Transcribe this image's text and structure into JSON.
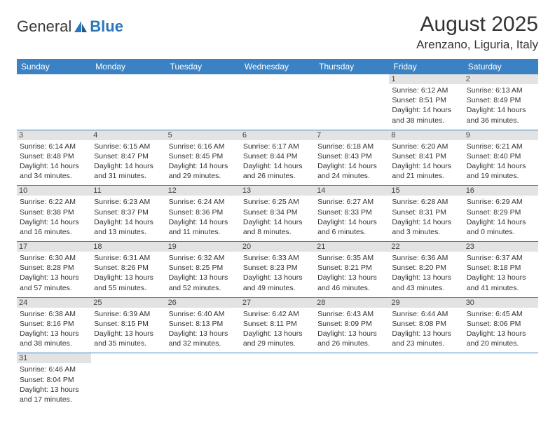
{
  "logo": {
    "part1": "General",
    "part2": "Blue"
  },
  "title": "August 2025",
  "location": "Arenzano, Liguria, Italy",
  "dayHeaders": [
    "Sunday",
    "Monday",
    "Tuesday",
    "Wednesday",
    "Thursday",
    "Friday",
    "Saturday"
  ],
  "colors": {
    "headerBg": "#3a82c4",
    "dayNumBg": "#e3e3e3",
    "text": "#333333"
  },
  "weeks": [
    [
      null,
      null,
      null,
      null,
      null,
      {
        "n": "1",
        "sr": "Sunrise: 6:12 AM",
        "ss": "Sunset: 8:51 PM",
        "dl": "Daylight: 14 hours and 38 minutes."
      },
      {
        "n": "2",
        "sr": "Sunrise: 6:13 AM",
        "ss": "Sunset: 8:49 PM",
        "dl": "Daylight: 14 hours and 36 minutes."
      }
    ],
    [
      {
        "n": "3",
        "sr": "Sunrise: 6:14 AM",
        "ss": "Sunset: 8:48 PM",
        "dl": "Daylight: 14 hours and 34 minutes."
      },
      {
        "n": "4",
        "sr": "Sunrise: 6:15 AM",
        "ss": "Sunset: 8:47 PM",
        "dl": "Daylight: 14 hours and 31 minutes."
      },
      {
        "n": "5",
        "sr": "Sunrise: 6:16 AM",
        "ss": "Sunset: 8:45 PM",
        "dl": "Daylight: 14 hours and 29 minutes."
      },
      {
        "n": "6",
        "sr": "Sunrise: 6:17 AM",
        "ss": "Sunset: 8:44 PM",
        "dl": "Daylight: 14 hours and 26 minutes."
      },
      {
        "n": "7",
        "sr": "Sunrise: 6:18 AM",
        "ss": "Sunset: 8:43 PM",
        "dl": "Daylight: 14 hours and 24 minutes."
      },
      {
        "n": "8",
        "sr": "Sunrise: 6:20 AM",
        "ss": "Sunset: 8:41 PM",
        "dl": "Daylight: 14 hours and 21 minutes."
      },
      {
        "n": "9",
        "sr": "Sunrise: 6:21 AM",
        "ss": "Sunset: 8:40 PM",
        "dl": "Daylight: 14 hours and 19 minutes."
      }
    ],
    [
      {
        "n": "10",
        "sr": "Sunrise: 6:22 AM",
        "ss": "Sunset: 8:38 PM",
        "dl": "Daylight: 14 hours and 16 minutes."
      },
      {
        "n": "11",
        "sr": "Sunrise: 6:23 AM",
        "ss": "Sunset: 8:37 PM",
        "dl": "Daylight: 14 hours and 13 minutes."
      },
      {
        "n": "12",
        "sr": "Sunrise: 6:24 AM",
        "ss": "Sunset: 8:36 PM",
        "dl": "Daylight: 14 hours and 11 minutes."
      },
      {
        "n": "13",
        "sr": "Sunrise: 6:25 AM",
        "ss": "Sunset: 8:34 PM",
        "dl": "Daylight: 14 hours and 8 minutes."
      },
      {
        "n": "14",
        "sr": "Sunrise: 6:27 AM",
        "ss": "Sunset: 8:33 PM",
        "dl": "Daylight: 14 hours and 6 minutes."
      },
      {
        "n": "15",
        "sr": "Sunrise: 6:28 AM",
        "ss": "Sunset: 8:31 PM",
        "dl": "Daylight: 14 hours and 3 minutes."
      },
      {
        "n": "16",
        "sr": "Sunrise: 6:29 AM",
        "ss": "Sunset: 8:29 PM",
        "dl": "Daylight: 14 hours and 0 minutes."
      }
    ],
    [
      {
        "n": "17",
        "sr": "Sunrise: 6:30 AM",
        "ss": "Sunset: 8:28 PM",
        "dl": "Daylight: 13 hours and 57 minutes."
      },
      {
        "n": "18",
        "sr": "Sunrise: 6:31 AM",
        "ss": "Sunset: 8:26 PM",
        "dl": "Daylight: 13 hours and 55 minutes."
      },
      {
        "n": "19",
        "sr": "Sunrise: 6:32 AM",
        "ss": "Sunset: 8:25 PM",
        "dl": "Daylight: 13 hours and 52 minutes."
      },
      {
        "n": "20",
        "sr": "Sunrise: 6:33 AM",
        "ss": "Sunset: 8:23 PM",
        "dl": "Daylight: 13 hours and 49 minutes."
      },
      {
        "n": "21",
        "sr": "Sunrise: 6:35 AM",
        "ss": "Sunset: 8:21 PM",
        "dl": "Daylight: 13 hours and 46 minutes."
      },
      {
        "n": "22",
        "sr": "Sunrise: 6:36 AM",
        "ss": "Sunset: 8:20 PM",
        "dl": "Daylight: 13 hours and 43 minutes."
      },
      {
        "n": "23",
        "sr": "Sunrise: 6:37 AM",
        "ss": "Sunset: 8:18 PM",
        "dl": "Daylight: 13 hours and 41 minutes."
      }
    ],
    [
      {
        "n": "24",
        "sr": "Sunrise: 6:38 AM",
        "ss": "Sunset: 8:16 PM",
        "dl": "Daylight: 13 hours and 38 minutes."
      },
      {
        "n": "25",
        "sr": "Sunrise: 6:39 AM",
        "ss": "Sunset: 8:15 PM",
        "dl": "Daylight: 13 hours and 35 minutes."
      },
      {
        "n": "26",
        "sr": "Sunrise: 6:40 AM",
        "ss": "Sunset: 8:13 PM",
        "dl": "Daylight: 13 hours and 32 minutes."
      },
      {
        "n": "27",
        "sr": "Sunrise: 6:42 AM",
        "ss": "Sunset: 8:11 PM",
        "dl": "Daylight: 13 hours and 29 minutes."
      },
      {
        "n": "28",
        "sr": "Sunrise: 6:43 AM",
        "ss": "Sunset: 8:09 PM",
        "dl": "Daylight: 13 hours and 26 minutes."
      },
      {
        "n": "29",
        "sr": "Sunrise: 6:44 AM",
        "ss": "Sunset: 8:08 PM",
        "dl": "Daylight: 13 hours and 23 minutes."
      },
      {
        "n": "30",
        "sr": "Sunrise: 6:45 AM",
        "ss": "Sunset: 8:06 PM",
        "dl": "Daylight: 13 hours and 20 minutes."
      }
    ],
    [
      {
        "n": "31",
        "sr": "Sunrise: 6:46 AM",
        "ss": "Sunset: 8:04 PM",
        "dl": "Daylight: 13 hours and 17 minutes."
      },
      null,
      null,
      null,
      null,
      null,
      null
    ]
  ]
}
